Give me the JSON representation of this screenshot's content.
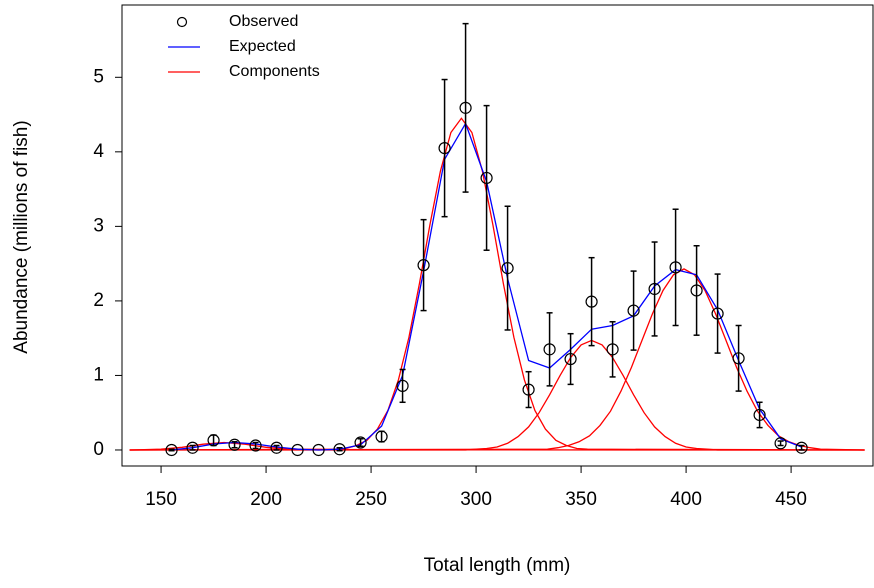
{
  "chart_data": {
    "type": "mixture",
    "x_label": "Total length (mm)",
    "y_label": "Abundance (millions of fish)",
    "xlim": [
      131.4,
      489
    ],
    "ylim": [
      -0.215,
      5.97
    ],
    "xticks": [
      150,
      200,
      250,
      300,
      350,
      400,
      450
    ],
    "yticks": [
      0,
      1,
      2,
      3,
      4,
      5
    ],
    "legend": "top-left",
    "series": [
      {
        "name": "Observed",
        "color": "#000000",
        "x": [
          155,
          165,
          175,
          185,
          195,
          205,
          215,
          225,
          235,
          245,
          255,
          265,
          275,
          285,
          295,
          305,
          315,
          325,
          335,
          345,
          355,
          365,
          375,
          385,
          395,
          405,
          415,
          425,
          435,
          445,
          455
        ],
        "values": [
          0,
          0.03,
          0.13,
          0.07,
          0.06,
          0.03,
          0,
          0,
          0.01,
          0.1,
          0.18,
          0.86,
          2.48,
          4.05,
          4.59,
          3.65,
          2.44,
          0.81,
          1.35,
          1.22,
          1.99,
          1.35,
          1.87,
          2.16,
          2.45,
          2.14,
          1.83,
          1.23,
          0.47,
          0.09,
          0.03
        ],
        "errors": [
          0.01,
          0.03,
          0.07,
          0.04,
          0.04,
          0.03,
          0,
          0,
          0.02,
          0.05,
          0.07,
          0.22,
          0.61,
          0.92,
          1.13,
          0.97,
          0.83,
          0.24,
          0.49,
          0.34,
          0.59,
          0.37,
          0.53,
          0.63,
          0.78,
          0.6,
          0.53,
          0.44,
          0.17,
          0.03,
          0.03
        ]
      },
      {
        "name": "Expected",
        "color": "#0000ff",
        "x": [
          155,
          165,
          175,
          185,
          195,
          205,
          215,
          225,
          235,
          245,
          255,
          265,
          275,
          285,
          295,
          305,
          315,
          325,
          335,
          345,
          355,
          365,
          375,
          385,
          395,
          405,
          415,
          425,
          435,
          445,
          455
        ],
        "values": [
          0,
          0.03,
          0.08,
          0.1,
          0.08,
          0.04,
          0.01,
          0,
          0.01,
          0.07,
          0.32,
          1.0,
          2.4,
          3.9,
          4.38,
          3.6,
          2.3,
          1.2,
          1.1,
          1.35,
          1.62,
          1.67,
          1.8,
          2.2,
          2.42,
          2.35,
          1.88,
          1.2,
          0.55,
          0.15,
          0.04
        ]
      },
      {
        "name": "Components",
        "color": "#ff0000",
        "curves": [
          {
            "x": [
              135,
              140,
              150,
              160,
              170,
              180,
              190,
              200,
              210,
              220,
              485
            ],
            "values": [
              0,
              0.002,
              0.01,
              0.036,
              0.077,
              0.1,
              0.077,
              0.036,
              0.01,
              0.002,
              0
            ]
          },
          {
            "x": [
              135,
              233,
              238,
              243,
              248,
              253,
              258,
              263,
              268,
              273,
              278,
              283,
              288,
              293,
              298,
              303,
              308,
              313,
              318,
              323,
              328,
              333,
              338,
              343,
              348,
              353,
              485
            ],
            "values": [
              0,
              0.01,
              0.02,
              0.06,
              0.13,
              0.28,
              0.53,
              0.94,
              1.51,
              2.23,
              3.02,
              3.74,
              4.26,
              4.45,
              4.26,
              3.74,
              3.02,
              2.23,
              1.51,
              0.94,
              0.53,
              0.28,
              0.13,
              0.06,
              0.02,
              0.01,
              0
            ]
          },
          {
            "x": [
              135,
              295,
              300,
              305,
              310,
              315,
              320,
              325,
              330,
              335,
              340,
              345,
              350,
              355,
              360,
              365,
              370,
              375,
              380,
              385,
              390,
              395,
              400,
              405,
              410,
              415,
              485
            ],
            "values": [
              0,
              0,
              0.01,
              0.02,
              0.04,
              0.09,
              0.18,
              0.31,
              0.5,
              0.74,
              1.0,
              1.24,
              1.41,
              1.47,
              1.41,
              1.24,
              1.0,
              0.74,
              0.5,
              0.31,
              0.18,
              0.09,
              0.04,
              0.02,
              0.01,
              0,
              0
            ]
          },
          {
            "x": [
              135,
              334,
              339,
              344,
              349,
              354,
              359,
              364,
              369,
              374,
              379,
              384,
              389,
              394,
              399,
              404,
              409,
              414,
              419,
              424,
              429,
              434,
              439,
              444,
              449,
              454,
              459,
              464,
              485
            ],
            "values": [
              0,
              0.01,
              0.03,
              0.06,
              0.11,
              0.19,
              0.33,
              0.52,
              0.79,
              1.11,
              1.47,
              1.83,
              2.14,
              2.35,
              2.43,
              2.35,
              2.14,
              1.83,
              1.47,
              1.11,
              0.79,
              0.52,
              0.33,
              0.19,
              0.11,
              0.06,
              0.03,
              0.01,
              0
            ]
          }
        ]
      }
    ]
  }
}
